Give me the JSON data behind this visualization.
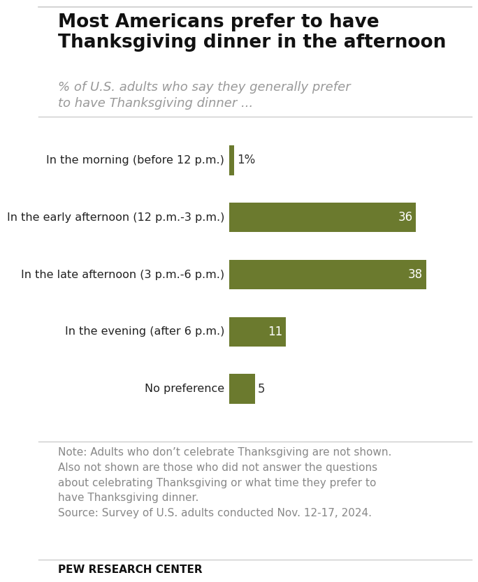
{
  "title": "Most Americans prefer to have\nThanksgiving dinner in the afternoon",
  "subtitle": "% of U.S. adults who say they generally prefer\nto have Thanksgiving dinner ...",
  "categories": [
    "In the morning (before 12 p.m.)",
    "In the early afternoon (12 p.m.-3 p.m.)",
    "In the late afternoon (3 p.m.-6 p.m.)",
    "In the evening (after 6 p.m.)",
    "No preference"
  ],
  "values": [
    1,
    36,
    38,
    11,
    5
  ],
  "bar_color": "#6b7a2e",
  "label_color_inside": "#ffffff",
  "label_color_outside": "#333333",
  "note_line1": "Note: Adults who don’t celebrate Thanksgiving are not shown.",
  "note_line2": "Also not shown are those who did not answer the questions",
  "note_line3": "about celebrating Thanksgiving or what time they prefer to",
  "note_line4": "have Thanksgiving dinner.",
  "note_line5": "Source: Survey of U.S. adults conducted Nov. 12-17, 2024.",
  "footer": "PEW RESEARCH CENTER",
  "background_color": "#ffffff",
  "title_fontsize": 19,
  "subtitle_fontsize": 13,
  "category_fontsize": 11.5,
  "value_fontsize": 12,
  "note_fontsize": 11,
  "footer_fontsize": 11,
  "xlim": [
    0,
    43
  ]
}
